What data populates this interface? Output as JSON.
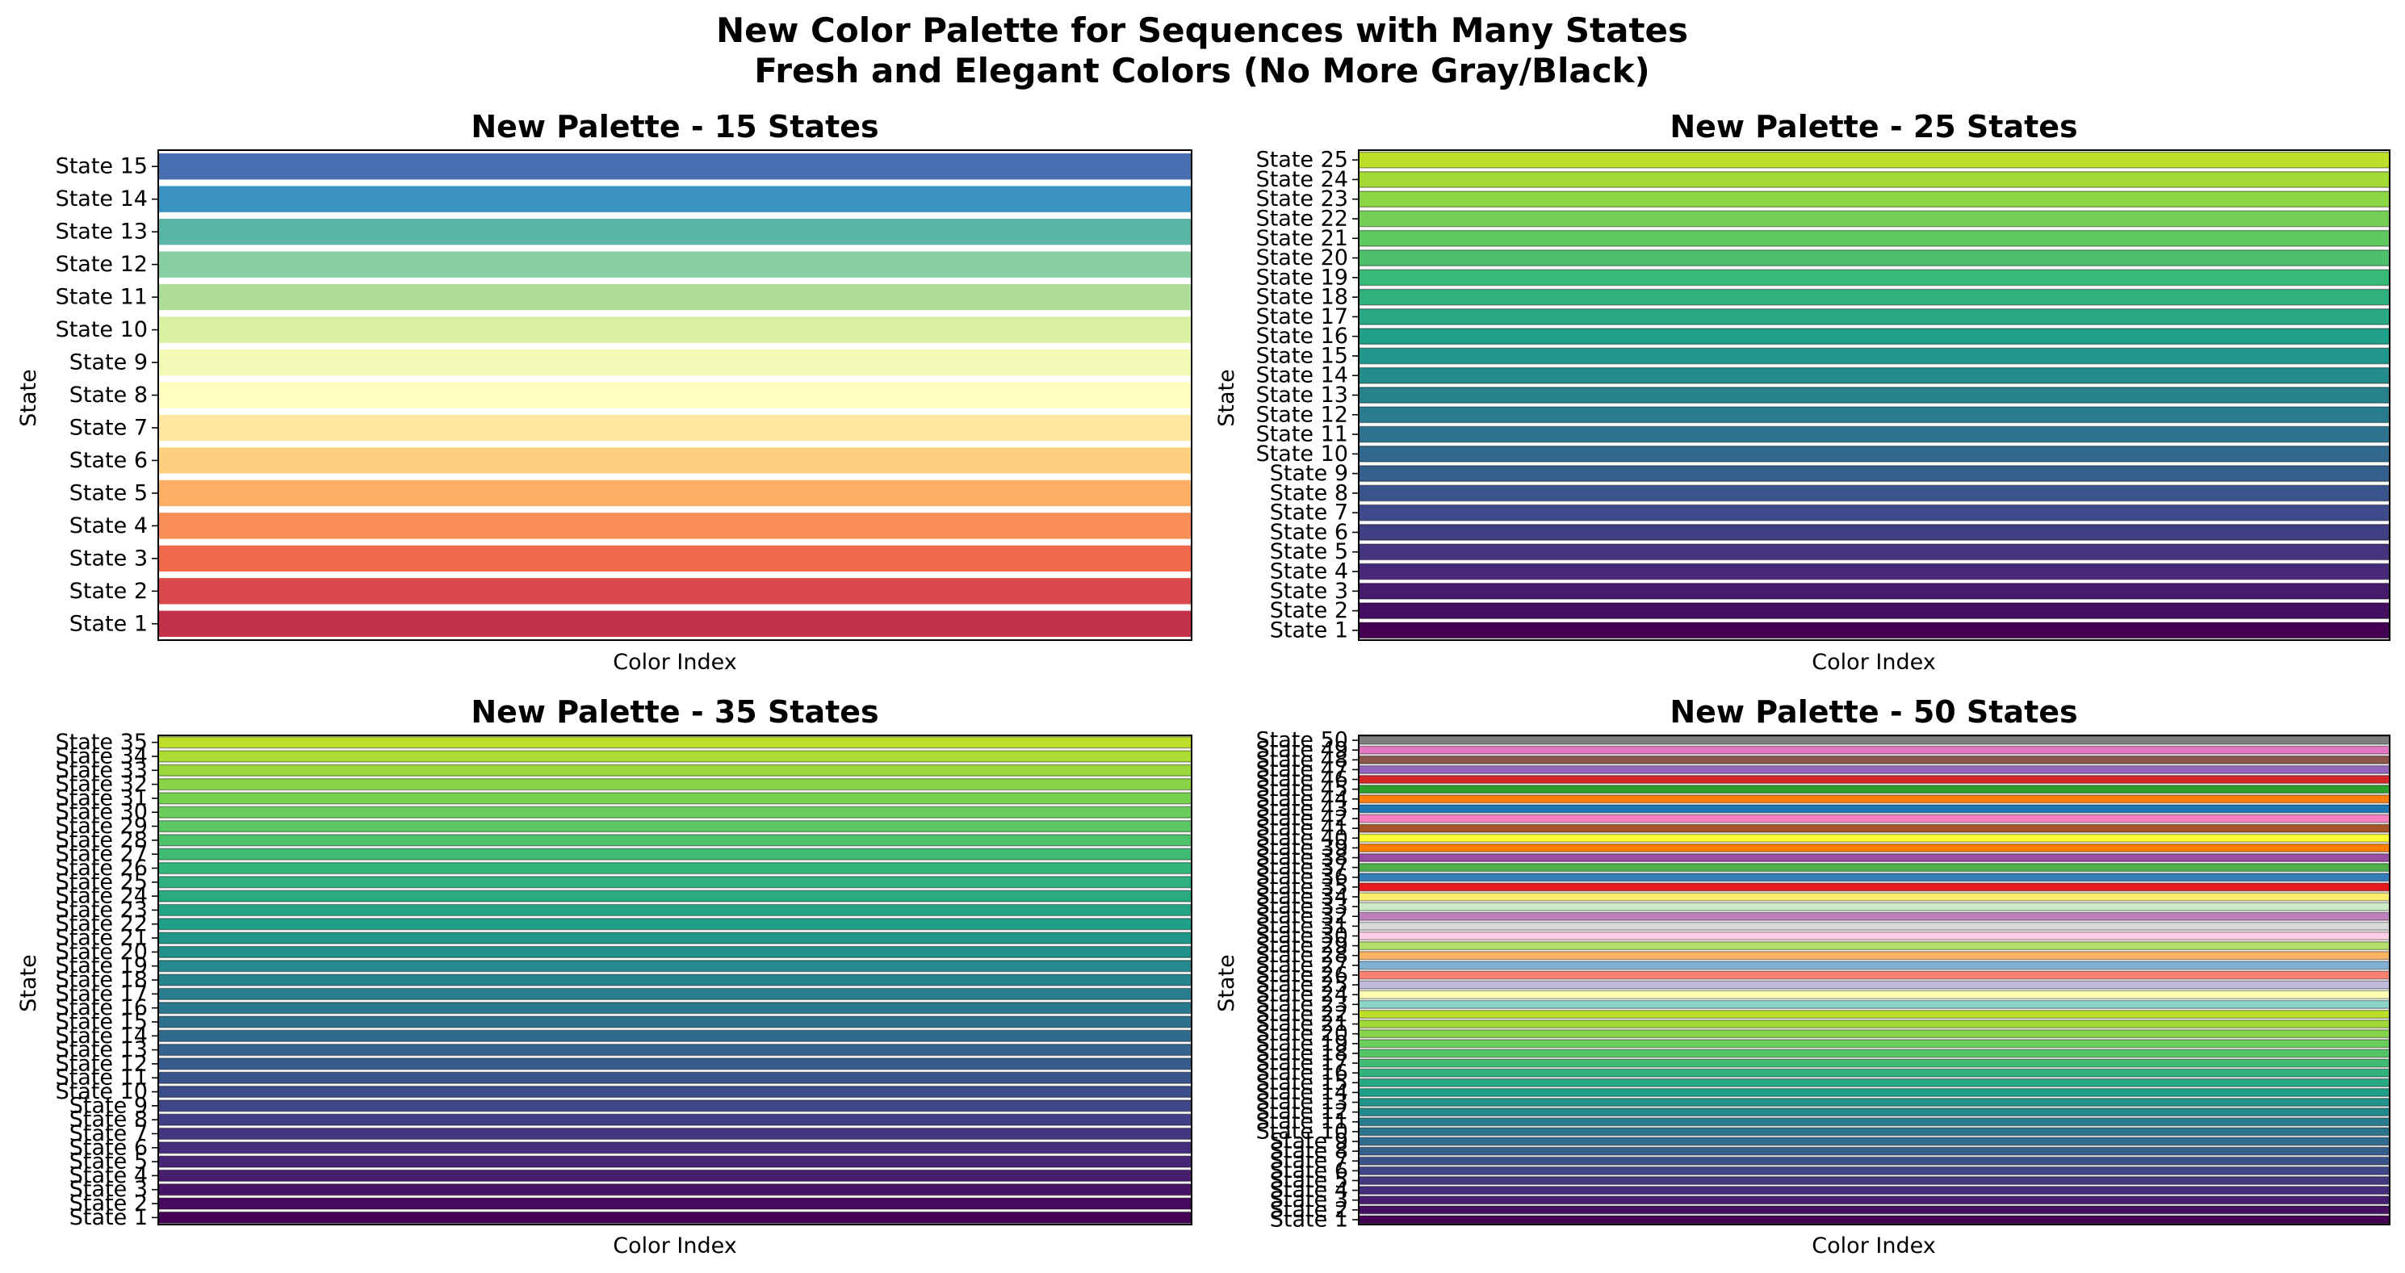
{
  "figure": {
    "suptitle_line1": "New Color Palette for Sequences with Many States",
    "suptitle_line2": "Fresh and Elegant Colors (No More Gray/Black)"
  },
  "chart_data": [
    {
      "type": "bar",
      "orientation": "horizontal",
      "title": "New Palette - 15 States",
      "xlabel": "Color Index",
      "ylabel": "State",
      "state_count": 15,
      "value_per_state": 1,
      "colors": [
        "#c2304a",
        "#da4a4d",
        "#ef6a4a",
        "#f78f56",
        "#fcb066",
        "#fdd07f",
        "#fee89f",
        "#ffffbf",
        "#f4fab5",
        "#d9f0a3",
        "#addd97",
        "#88cfa3",
        "#5ab5a7",
        "#3b93c2",
        "#4a6fb0"
      ]
    },
    {
      "type": "bar",
      "orientation": "horizontal",
      "title": "New Palette - 25 States",
      "xlabel": "Color Index",
      "ylabel": "State",
      "state_count": 25,
      "value_per_state": 1,
      "palette": "viridis"
    },
    {
      "type": "bar",
      "orientation": "horizontal",
      "title": "New Palette - 35 States",
      "xlabel": "Color Index",
      "ylabel": "State",
      "state_count": 35,
      "value_per_state": 1,
      "palette": "viridis"
    },
    {
      "type": "bar",
      "orientation": "horizontal",
      "title": "New Palette - 50 States",
      "xlabel": "Color Index",
      "ylabel": "State",
      "state_count": 50,
      "value_per_state": 1,
      "palette": "viridis + Set3 + Set1 + tab10",
      "colors_states_23_to_50": [
        "#8dd3c7",
        "#ffffb3",
        "#bebada",
        "#fb8072",
        "#80b1d3",
        "#fdb462",
        "#b3de69",
        "#fccde5",
        "#d9d9d9",
        "#bc80bd",
        "#ccebc5",
        "#ffed6f",
        "#e41a1c",
        "#377eb8",
        "#4daf4a",
        "#984ea3",
        "#ff7f00",
        "#ffff33",
        "#a65628",
        "#f781bf",
        "#1f77b4",
        "#ff7f0e",
        "#2ca02c",
        "#d62728",
        "#9467bd",
        "#8c564b",
        "#e377c2",
        "#7f7f7f"
      ]
    }
  ]
}
